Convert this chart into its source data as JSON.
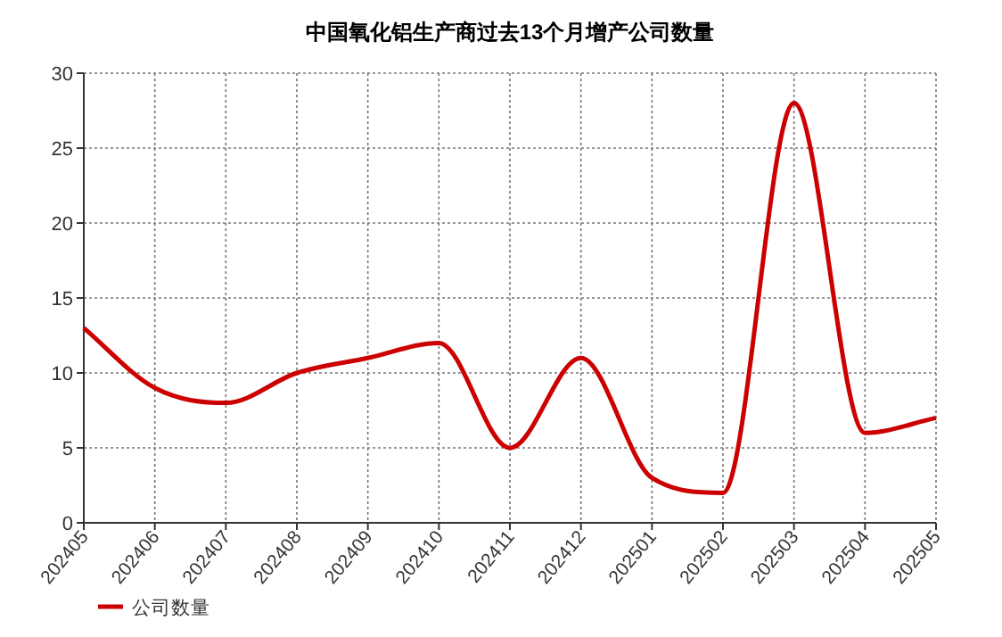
{
  "chart_data": {
    "type": "line",
    "title": "中国氧化铝生产商过去13个月增产公司数量",
    "categories": [
      "202405",
      "202406",
      "202407",
      "202408",
      "202409",
      "202410",
      "202411",
      "202412",
      "202501",
      "202502",
      "202503",
      "202504",
      "202505"
    ],
    "series": [
      {
        "name": "公司数量",
        "color": "#cc0000",
        "values": [
          13,
          9,
          8,
          10,
          11,
          12,
          5,
          11,
          3,
          2,
          28,
          6,
          7
        ]
      }
    ],
    "ylim": [
      0,
      30
    ],
    "yticks": [
      0,
      5,
      10,
      15,
      20,
      25,
      30
    ],
    "grid": true,
    "legend": "bottom left"
  }
}
